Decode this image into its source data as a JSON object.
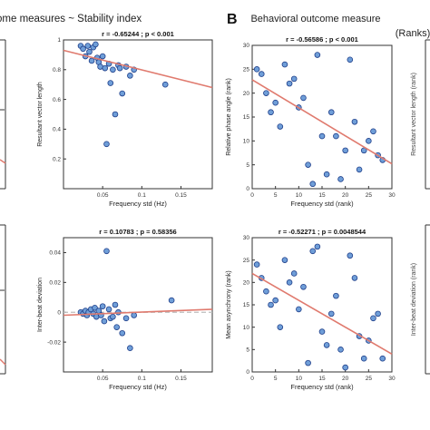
{
  "headers": {
    "a_title": "ome measures ~ Stability index",
    "b_letter": "B",
    "b_title_line1": "Behavioral outcome measure",
    "b_title_line2": "(Ranks)"
  },
  "colors": {
    "point_fill": "#6f9ed8",
    "point_stroke": "#1f3f8a",
    "regression_line": "#e07a6e",
    "zero_line": "#bdbdbd",
    "axis": "#333333"
  },
  "chart_data": [
    {
      "id": "p1",
      "type": "scatter",
      "stat": "r = -0.65244 ; p < 0.001",
      "xlabel": "Frequency std (Hz)",
      "ylabel": "Resultant vector length",
      "xlim": [
        0,
        0.19
      ],
      "ylim": [
        0,
        1
      ],
      "xticks": [
        0.05,
        0.1,
        0.15
      ],
      "xtick_labels": [
        "0.05",
        "0.1",
        "0.15"
      ],
      "yticks": [
        0.2,
        0.4,
        0.6,
        0.8,
        1
      ],
      "ytick_labels": [
        "0.2",
        "0.4",
        "0.6",
        "0.8",
        "1"
      ],
      "points": [
        [
          0.022,
          0.96
        ],
        [
          0.025,
          0.94
        ],
        [
          0.028,
          0.89
        ],
        [
          0.031,
          0.96
        ],
        [
          0.033,
          0.92
        ],
        [
          0.036,
          0.86
        ],
        [
          0.038,
          0.95
        ],
        [
          0.041,
          0.97
        ],
        [
          0.043,
          0.88
        ],
        [
          0.045,
          0.85
        ],
        [
          0.047,
          0.82
        ],
        [
          0.05,
          0.89
        ],
        [
          0.053,
          0.81
        ],
        [
          0.055,
          0.3
        ],
        [
          0.058,
          0.84
        ],
        [
          0.06,
          0.71
        ],
        [
          0.063,
          0.8
        ],
        [
          0.066,
          0.5
        ],
        [
          0.07,
          0.83
        ],
        [
          0.072,
          0.81
        ],
        [
          0.075,
          0.64
        ],
        [
          0.08,
          0.82
        ],
        [
          0.085,
          0.76
        ],
        [
          0.09,
          0.8
        ],
        [
          0.13,
          0.7
        ]
      ],
      "fit": [
        [
          0,
          0.93
        ],
        [
          0.19,
          0.68
        ]
      ]
    },
    {
      "id": "p2",
      "type": "scatter",
      "stat": "r = 0.10783 ; p = 0.58356",
      "xlabel": "Frequency std (Hz)",
      "ylabel": "Inter-beat deviation",
      "xlim": [
        0,
        0.19
      ],
      "ylim": [
        -0.04,
        0.05
      ],
      "xticks": [
        0.05,
        0.1,
        0.15
      ],
      "xtick_labels": [
        "0.05",
        "0.1",
        "0.15"
      ],
      "yticks": [
        -0.02,
        0,
        0.02,
        0.04
      ],
      "ytick_labels": [
        "-0.02",
        "0",
        "0.02",
        "0.04"
      ],
      "zero_line": 0,
      "points": [
        [
          0.022,
          0.0
        ],
        [
          0.025,
          -0.001
        ],
        [
          0.028,
          0.001
        ],
        [
          0.03,
          -0.002
        ],
        [
          0.032,
          0.0
        ],
        [
          0.035,
          0.002
        ],
        [
          0.038,
          -0.001
        ],
        [
          0.04,
          0.003
        ],
        [
          0.042,
          -0.003
        ],
        [
          0.045,
          0.001
        ],
        [
          0.048,
          -0.002
        ],
        [
          0.05,
          0.004
        ],
        [
          0.052,
          -0.006
        ],
        [
          0.055,
          0.041
        ],
        [
          0.058,
          0.002
        ],
        [
          0.06,
          -0.004
        ],
        [
          0.063,
          -0.003
        ],
        [
          0.066,
          0.005
        ],
        [
          0.068,
          -0.01
        ],
        [
          0.07,
          0.0
        ],
        [
          0.075,
          -0.014
        ],
        [
          0.08,
          -0.004
        ],
        [
          0.085,
          -0.024
        ],
        [
          0.09,
          -0.002
        ],
        [
          0.138,
          0.008
        ]
      ],
      "fit": [
        [
          0,
          -0.002
        ],
        [
          0.19,
          0.002
        ]
      ]
    },
    {
      "id": "p3",
      "type": "scatter",
      "stat": "r = -0.56586 ; p < 0.001",
      "xlabel": "Frequency std (rank)",
      "ylabel": "Relative phase angle (rank)",
      "xlim": [
        0,
        30
      ],
      "ylim": [
        0,
        30
      ],
      "xticks": [
        0,
        5,
        10,
        15,
        20,
        25,
        30
      ],
      "xtick_labels": [
        "0",
        "5",
        "10",
        "15",
        "20",
        "25",
        "30"
      ],
      "yticks": [
        0,
        5,
        10,
        15,
        20,
        25,
        30
      ],
      "ytick_labels": [
        "0",
        "5",
        "10",
        "15",
        "20",
        "25",
        "30"
      ],
      "points": [
        [
          1,
          25
        ],
        [
          2,
          24
        ],
        [
          3,
          20
        ],
        [
          4,
          16
        ],
        [
          5,
          18
        ],
        [
          6,
          13
        ],
        [
          7,
          26
        ],
        [
          8,
          22
        ],
        [
          9,
          23
        ],
        [
          10,
          17
        ],
        [
          11,
          19
        ],
        [
          12,
          5
        ],
        [
          13,
          1
        ],
        [
          14,
          28
        ],
        [
          15,
          11
        ],
        [
          16,
          3
        ],
        [
          17,
          16
        ],
        [
          18,
          11
        ],
        [
          19,
          2
        ],
        [
          20,
          8
        ],
        [
          21,
          27
        ],
        [
          22,
          14
        ],
        [
          23,
          4
        ],
        [
          24,
          8
        ],
        [
          25,
          10
        ],
        [
          26,
          12
        ],
        [
          27,
          7
        ],
        [
          28,
          6
        ]
      ],
      "fit": [
        [
          0,
          22.8
        ],
        [
          30,
          5.2
        ]
      ]
    },
    {
      "id": "p4",
      "type": "scatter",
      "stat": "r = -0.52271 ; p = 0.0048544",
      "xlabel": "Frequency std (rank)",
      "ylabel": "Mean asynchrony (rank)",
      "xlim": [
        0,
        30
      ],
      "ylim": [
        0,
        30
      ],
      "xticks": [
        0,
        5,
        10,
        15,
        20,
        25,
        30
      ],
      "xtick_labels": [
        "0",
        "5",
        "10",
        "15",
        "20",
        "25",
        "30"
      ],
      "yticks": [
        0,
        5,
        10,
        15,
        20,
        25,
        30
      ],
      "ytick_labels": [
        "0",
        "5",
        "10",
        "15",
        "20",
        "25",
        "30"
      ],
      "points": [
        [
          1,
          24
        ],
        [
          2,
          21
        ],
        [
          3,
          18
        ],
        [
          4,
          15
        ],
        [
          5,
          16
        ],
        [
          6,
          10
        ],
        [
          7,
          25
        ],
        [
          8,
          20
        ],
        [
          9,
          22
        ],
        [
          10,
          14
        ],
        [
          11,
          19
        ],
        [
          12,
          2
        ],
        [
          13,
          27
        ],
        [
          14,
          28
        ],
        [
          15,
          9
        ],
        [
          16,
          6
        ],
        [
          17,
          13
        ],
        [
          18,
          17
        ],
        [
          19,
          5
        ],
        [
          20,
          1
        ],
        [
          21,
          26
        ],
        [
          22,
          21
        ],
        [
          23,
          8
        ],
        [
          24,
          3
        ],
        [
          25,
          7
        ],
        [
          26,
          12
        ],
        [
          27,
          13
        ],
        [
          28,
          3
        ]
      ],
      "fit": [
        [
          0,
          22.0
        ],
        [
          30,
          4.0
        ]
      ]
    }
  ]
}
